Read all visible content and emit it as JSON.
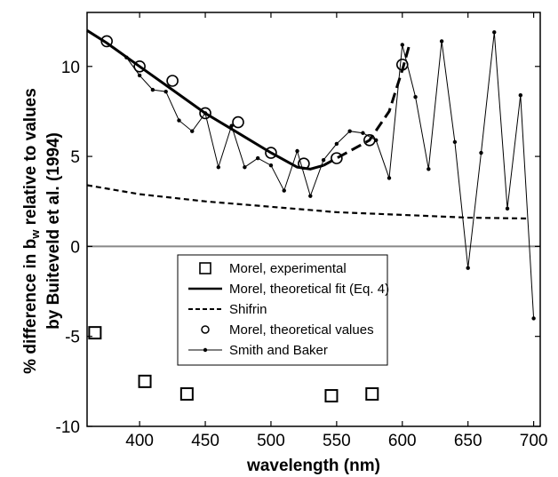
{
  "chart_data": {
    "type": "line",
    "title": "",
    "xlabel": "wavelength (nm)",
    "ylabel_line1_pre": "% difference in b",
    "ylabel_line1_sub": "w",
    "ylabel_line1_post": " relative to values",
    "ylabel_line2": "by Buiteveld et al. (1994)",
    "xlim": [
      360,
      705
    ],
    "ylim": [
      -10,
      13
    ],
    "xticks": [
      400,
      450,
      500,
      550,
      600,
      650,
      700
    ],
    "yticks": [
      -10,
      -5,
      0,
      5,
      10
    ],
    "zero_line": true,
    "legend_position": "center",
    "series": [
      {
        "name": "Morel, experimental",
        "style": "squares",
        "points": [
          [
            366,
            -4.8
          ],
          [
            404,
            -7.5
          ],
          [
            436,
            -8.2
          ],
          [
            546,
            -8.3
          ],
          [
            577,
            -8.2
          ]
        ]
      },
      {
        "name": "Morel, theoretical fit (Eq. 4)",
        "style": "solid-dashed",
        "points": [
          [
            360,
            12.0
          ],
          [
            375,
            11.3
          ],
          [
            400,
            10.0
          ],
          [
            425,
            8.7
          ],
          [
            450,
            7.4
          ],
          [
            475,
            6.3
          ],
          [
            500,
            5.2
          ],
          [
            520,
            4.4
          ],
          [
            530,
            4.3
          ],
          [
            540,
            4.5
          ],
          [
            550,
            4.9
          ],
          [
            560,
            5.3
          ],
          [
            575,
            5.9
          ],
          [
            590,
            7.5
          ],
          [
            600,
            9.8
          ],
          [
            605,
            11.1
          ]
        ]
      },
      {
        "name": "Shifrin",
        "style": "dashed",
        "points": [
          [
            360,
            3.4
          ],
          [
            400,
            2.9
          ],
          [
            450,
            2.5
          ],
          [
            500,
            2.2
          ],
          [
            550,
            1.9
          ],
          [
            600,
            1.75
          ],
          [
            650,
            1.6
          ],
          [
            695,
            1.55
          ]
        ]
      },
      {
        "name": "Morel, theoretical values",
        "style": "circles",
        "points": [
          [
            375,
            11.4
          ],
          [
            400,
            10.0
          ],
          [
            425,
            9.2
          ],
          [
            450,
            7.4
          ],
          [
            475,
            6.9
          ],
          [
            500,
            5.2
          ],
          [
            525,
            4.6
          ],
          [
            550,
            4.9
          ],
          [
            575,
            5.9
          ],
          [
            600,
            10.1
          ]
        ]
      },
      {
        "name": "Smith and Baker",
        "style": "thin-dots",
        "points": [
          [
            390,
            10.5
          ],
          [
            400,
            9.5
          ],
          [
            410,
            8.7
          ],
          [
            420,
            8.6
          ],
          [
            430,
            7.0
          ],
          [
            440,
            6.4
          ],
          [
            450,
            7.4
          ],
          [
            460,
            4.4
          ],
          [
            470,
            6.7
          ],
          [
            480,
            4.4
          ],
          [
            490,
            4.9
          ],
          [
            500,
            4.5
          ],
          [
            510,
            3.1
          ],
          [
            520,
            5.3
          ],
          [
            530,
            2.8
          ],
          [
            540,
            4.8
          ],
          [
            550,
            5.7
          ],
          [
            560,
            6.4
          ],
          [
            570,
            6.3
          ],
          [
            580,
            5.9
          ],
          [
            590,
            3.8
          ],
          [
            600,
            11.2
          ],
          [
            610,
            8.3
          ],
          [
            620,
            4.3
          ],
          [
            630,
            11.4
          ],
          [
            640,
            5.8
          ],
          [
            650,
            -1.2
          ],
          [
            660,
            5.2
          ],
          [
            670,
            11.9
          ],
          [
            680,
            2.1
          ],
          [
            690,
            8.4
          ],
          [
            700,
            -4.0
          ]
        ]
      }
    ]
  }
}
